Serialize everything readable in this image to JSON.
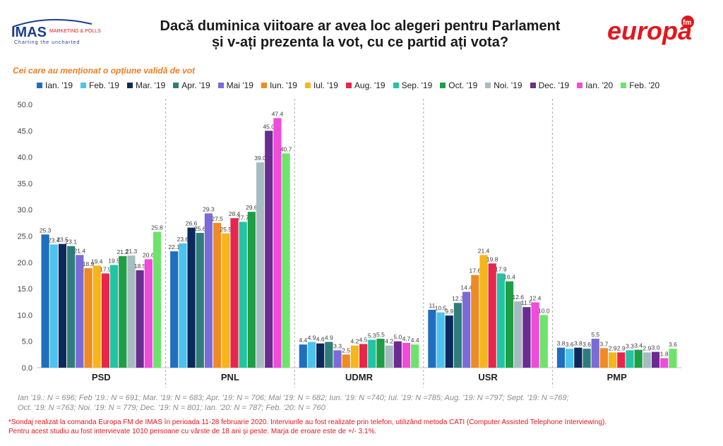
{
  "header": {
    "title_line1": "Dacă duminica viitoare ar avea loc alegeri pentru Parlament",
    "title_line2": "și v-ați prezenta la vot, cu ce partid ați vota?",
    "subtitle": "Cei care au menționat o opțiune validă de vot",
    "logo_left_text": "IMAS",
    "logo_left_sub": "MARKETING & POLLS",
    "logo_left_tagline": "Charting the uncharted",
    "logo_right_text": "europa",
    "logo_right_sup": "fm"
  },
  "chart_data": {
    "type": "bar",
    "categories": [
      "PSD",
      "PNL",
      "UDMR",
      "USR",
      "PMP"
    ],
    "ylim": [
      0,
      50
    ],
    "yticks": [
      "0.0",
      "5.0",
      "10.0",
      "15.0",
      "20.0",
      "25.0",
      "30.0",
      "35.0",
      "40.0",
      "45.0",
      "50.0"
    ],
    "grid": false,
    "legend_position": "top",
    "series": [
      {
        "name": "Ian. '19",
        "color": "#1f6fbf",
        "values": [
          25.3,
          22.1,
          4.4,
          11.0,
          3.8
        ],
        "labels": [
          "25.3",
          "22.1",
          "4.4",
          "11",
          "3.8"
        ]
      },
      {
        "name": "Feb. '19",
        "color": "#4cc3ee",
        "values": [
          23.4,
          23.6,
          4.9,
          10.5,
          3.6
        ],
        "labels": [
          "23.4",
          "23.6",
          "4.9",
          "10.5",
          "3.6"
        ]
      },
      {
        "name": "Mar. '19",
        "color": "#0b2a5c",
        "values": [
          23.5,
          26.6,
          4.6,
          9.9,
          3.8
        ],
        "labels": [
          "23.5",
          "26.6",
          "4.6",
          "9.9",
          "3.8"
        ]
      },
      {
        "name": "Apr. '19",
        "color": "#2f7d7a",
        "values": [
          23.1,
          25.6,
          4.9,
          12.3,
          3.6
        ],
        "labels": [
          "23.1",
          "25.6",
          "4.9",
          "12.3",
          "3.6"
        ]
      },
      {
        "name": "Mai '19",
        "color": "#7b6bd6",
        "values": [
          21.4,
          29.3,
          3.3,
          14.4,
          5.5
        ],
        "labels": [
          "21.4",
          "29.3",
          "3.3",
          "14.4",
          "5.5"
        ]
      },
      {
        "name": "Iun. '19",
        "color": "#f08a24",
        "values": [
          18.9,
          27.5,
          2.5,
          17.6,
          3.7
        ],
        "labels": [
          "18.9",
          "27.5",
          "2.5",
          "17.6",
          "3.7"
        ]
      },
      {
        "name": "Iul. '19",
        "color": "#f5b51b",
        "values": [
          19.4,
          25.5,
          4.2,
          21.4,
          2.9
        ],
        "labels": [
          "19.4",
          "25.5",
          "4.2",
          "21.4",
          "2.9"
        ]
      },
      {
        "name": "Aug. '19",
        "color": "#e8264b",
        "values": [
          17.9,
          28.4,
          4.5,
          19.8,
          2.9
        ],
        "labels": [
          "17.9",
          "28.4",
          "4.5",
          "19.8",
          "2.9"
        ]
      },
      {
        "name": "Sep. '19",
        "color": "#22c4a4",
        "values": [
          19.5,
          27.7,
          5.3,
          17.9,
          3.3
        ],
        "labels": [
          "19.5",
          "27.7",
          "5.3",
          "17.9",
          "3.3"
        ]
      },
      {
        "name": "Oct. '19",
        "color": "#1e9e45",
        "values": [
          21.2,
          29.6,
          5.5,
          16.4,
          3.4
        ],
        "labels": [
          "21.2",
          "29.6",
          "5.5",
          "16.4",
          "3.4"
        ]
      },
      {
        "name": "Noi. '19",
        "color": "#a7bcc0",
        "values": [
          21.3,
          39.0,
          4.2,
          12.6,
          2.9
        ],
        "labels": [
          "21.3",
          "39.0",
          "4.2",
          "12.6",
          "2.9"
        ]
      },
      {
        "name": "Dec. '19",
        "color": "#6a2c91",
        "values": [
          18.5,
          45.0,
          5.0,
          11.5,
          3.0
        ],
        "labels": [
          "18.5",
          "45.0",
          "5.0",
          "11.5",
          "3.0"
        ]
      },
      {
        "name": "Ian. '20",
        "color": "#f04bd9",
        "values": [
          20.6,
          47.4,
          4.7,
          12.4,
          1.8
        ],
        "labels": [
          "20.6",
          "47.4",
          "4.7",
          "12.4",
          "1.8"
        ]
      },
      {
        "name": "Feb. '20",
        "color": "#6ee36b",
        "values": [
          25.8,
          40.7,
          4.4,
          10.0,
          3.6
        ],
        "labels": [
          "25.8",
          "40.7",
          "4.4",
          "10.0",
          "3.6"
        ]
      }
    ]
  },
  "footnotes": {
    "sample_line1": "Ian '19.: N = 696; Feb '19.: N = 691; Mar. '19: N = 683; Apr. '19: N = 706; Mai '19: N = 682; Iun. '19: N =740; Iul. '19: N =785; Aug. '19: N =797; Sept. '19: N =769;",
    "sample_line2": "Oct. '19: N =763; Noi. '19: N = 779; Dec. '19: N = 801; Ian. '20: N = 787; Feb. '20: N = 760",
    "source_line1": "*Sondaj realizat la comanda Europa FM de IMAS în perioada 11-28 februarie 2020. Interviurile au fost realizate prin telefon, utilizând metoda CATI (Computer Assisted Telephone Interviewing).",
    "source_line2": "Pentru acest studiu au fost intervievate 1010 persoane cu vârste de 18 ani și peste. Marja de eroare este de +/- 3.1%."
  }
}
